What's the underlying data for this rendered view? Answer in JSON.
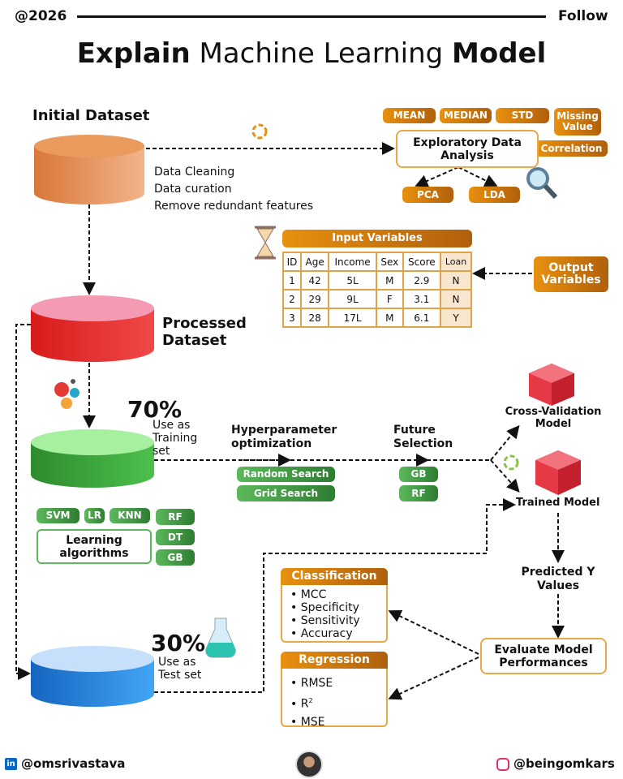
{
  "header": {
    "year": "@2026",
    "follow": "Follow"
  },
  "title": {
    "part1": "Explain",
    "part2": "Machine Learning",
    "part3": "Model"
  },
  "initial": {
    "title": "Initial Dataset",
    "steps": [
      "Data Cleaning",
      "Data curation",
      "Remove redundant features"
    ]
  },
  "eda": {
    "title": "Exploratory Data Analysis",
    "stats": [
      "MEAN",
      "MEDIAN",
      "STD",
      "Missing Value",
      "Correlation"
    ],
    "reduction": [
      "PCA",
      "LDA"
    ]
  },
  "table": {
    "title": "Input Variables",
    "columns": [
      "ID",
      "Age",
      "Income",
      "Sex",
      "Score",
      "Loan"
    ],
    "rows": [
      [
        "1",
        "42",
        "5L",
        "M",
        "2.9",
        "N"
      ],
      [
        "2",
        "29",
        "9L",
        "F",
        "3.1",
        "N"
      ],
      [
        "3",
        "28",
        "17L",
        "M",
        "6.1",
        "Y"
      ]
    ],
    "output_label": "Output Variables"
  },
  "processed": {
    "title": "Processed Dataset"
  },
  "training": {
    "percent": "70%",
    "label": "Use as Training set"
  },
  "hyper": {
    "title": "Hyperparameter optimization",
    "methods": [
      "Random Search",
      "Grid Search"
    ]
  },
  "feature": {
    "title": "Future Selection",
    "methods": [
      "GB",
      "RF"
    ]
  },
  "models": {
    "cv": "Cross-Validation Model",
    "trained": "Trained Model"
  },
  "algorithms": {
    "title": "Learning algorithms",
    "items": [
      "SVM",
      "LR",
      "KNN",
      "RF",
      "DT",
      "GB"
    ]
  },
  "predicted": "Predicted Y Values",
  "evaluate": "Evaluate Model Performances",
  "classification": {
    "title": "Classification",
    "items": [
      "MCC",
      "Specificity",
      "Sensitivity",
      "Accuracy"
    ]
  },
  "regression": {
    "title": "Regression",
    "items": [
      "RMSE",
      "R",
      "MSE"
    ],
    "r_sup": "2"
  },
  "test": {
    "percent": "30%",
    "label": "Use as Test set"
  },
  "footer": {
    "linkedin": "@omsrivastava",
    "instagram": "@beingomkars"
  },
  "colors": {
    "orange": "#e8900f",
    "green": "#4caf50",
    "red": "#e53935",
    "blue": "#1e88e5",
    "pink": "#f48fb1"
  }
}
